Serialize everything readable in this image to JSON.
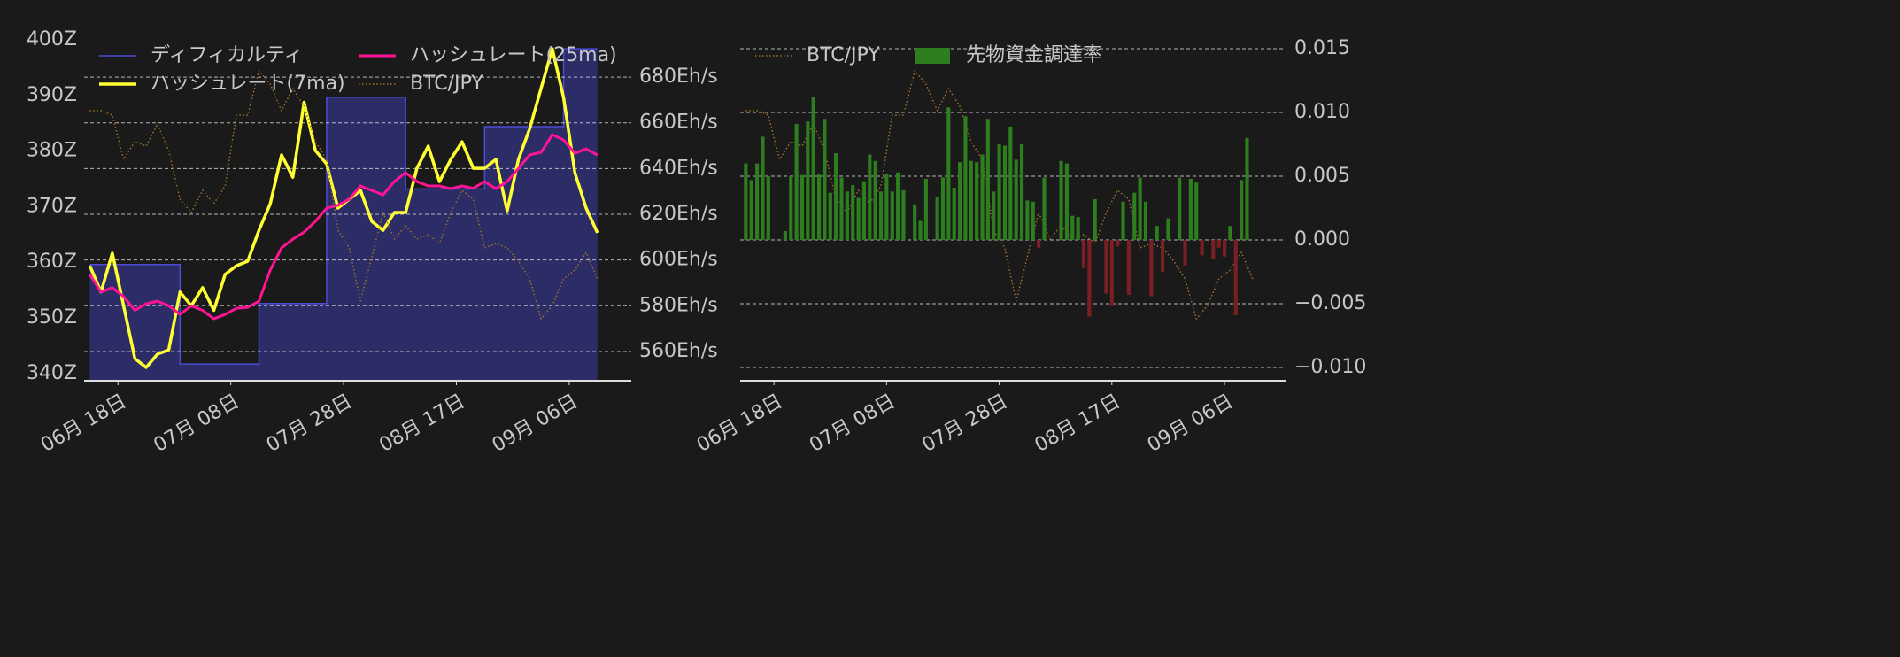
{
  "chart_data": [
    {
      "type": "line",
      "x": [
        "06-13",
        "06-15",
        "06-17",
        "06-19",
        "06-21",
        "06-23",
        "06-25",
        "06-27",
        "06-29",
        "07-01",
        "07-03",
        "07-05",
        "07-07",
        "07-09",
        "07-11",
        "07-13",
        "07-15",
        "07-17",
        "07-19",
        "07-21",
        "07-23",
        "07-25",
        "07-27",
        "07-29",
        "07-31",
        "08-02",
        "08-04",
        "08-06",
        "08-08",
        "08-10",
        "08-12",
        "08-14",
        "08-16",
        "08-18",
        "08-20",
        "08-22",
        "08-24",
        "08-26",
        "08-28",
        "08-30",
        "09-01",
        "09-03",
        "09-05",
        "09-07",
        "09-09",
        "09-11"
      ],
      "xlim": [
        "06-12",
        "09-17"
      ],
      "xticks": [
        {
          "value": "06-18",
          "label": "06月 18日"
        },
        {
          "value": "07-08",
          "label": "07月 08日"
        },
        {
          "value": "07-28",
          "label": "07月 28日"
        },
        {
          "value": "08-17",
          "label": "08月 17日"
        },
        {
          "value": "09-06",
          "label": "09月 06日"
        }
      ],
      "ylim": [
        338.7,
        402.4
      ],
      "yticks": [
        {
          "value": 340,
          "label": "340Z"
        },
        {
          "value": 350,
          "label": "350Z"
        },
        {
          "value": 360,
          "label": "360Z"
        },
        {
          "value": 370,
          "label": "370Z"
        },
        {
          "value": 380,
          "label": "380Z"
        },
        {
          "value": 390,
          "label": "390Z"
        },
        {
          "value": 400,
          "label": "400Z"
        }
      ],
      "y2lim": [
        547.2,
        702.1
      ],
      "y2ticks": [
        {
          "value": 560,
          "label": "560Eh/s"
        },
        {
          "value": 580,
          "label": "580Eh/s"
        },
        {
          "value": 600,
          "label": "600Eh/s"
        },
        {
          "value": 620,
          "label": "620Eh/s"
        },
        {
          "value": 640,
          "label": "640Eh/s"
        },
        {
          "value": 660,
          "label": "660Eh/s"
        },
        {
          "value": 680,
          "label": "680Eh/s"
        }
      ],
      "y3lim": [
        7.0,
        11.0
      ],
      "grid": true,
      "grid_axis": "y2",
      "legend": "upper left",
      "legend_columns": 2,
      "series": [
        {
          "name": "ディフィカルティ",
          "type": "area",
          "step": "post",
          "color": "#4b4bd8",
          "fill": "#2c2c66",
          "values": [
            359.6,
            359.6,
            359.6,
            359.6,
            359.6,
            359.6,
            359.6,
            359.6,
            341.7,
            341.7,
            341.7,
            341.7,
            341.7,
            341.7,
            341.7,
            352.6,
            352.6,
            352.6,
            352.6,
            352.6,
            352.6,
            389.7,
            389.7,
            389.7,
            389.7,
            389.7,
            389.7,
            389.7,
            373.2,
            373.2,
            373.2,
            373.2,
            373.2,
            373.2,
            373.2,
            384.4,
            384.4,
            384.4,
            384.4,
            384.4,
            384.4,
            384.4,
            398.4,
            398.4,
            398.4,
            398.4
          ]
        },
        {
          "name": "ハッシュレート(7ma)",
          "axis": "y2",
          "color": "#ffff33",
          "width": 3.5,
          "values": [
            597.5,
            586,
            603,
            580,
            556.9,
            553,
            558.8,
            560.7,
            586,
            580,
            587.9,
            578,
            593.7,
            597.5,
            599.5,
            613,
            624.6,
            646,
            636.2,
            669,
            647.9,
            642,
            622.7,
            626.6,
            630.4,
            616.9,
            613,
            620.8,
            620.8,
            640.1,
            649.8,
            634.3,
            644,
            651.7,
            640.1,
            640.1,
            644,
            621.5,
            644,
            657.5,
            675,
            692.4,
            671,
            638.2,
            622.7,
            611.9
          ]
        },
        {
          "name": "ハッシュレート(25ma)",
          "axis": "y2",
          "color": "#ff1493",
          "width": 3,
          "values": [
            593.7,
            586,
            587.9,
            584,
            578,
            580.9,
            582,
            580,
            576.2,
            580,
            578,
            574.3,
            576.2,
            578.9,
            579.3,
            582,
            595.6,
            605.3,
            609.1,
            612.2,
            616.9,
            622.7,
            623.9,
            626.6,
            632.4,
            630.4,
            628.5,
            634.3,
            638.2,
            634.3,
            632.4,
            632.4,
            631.2,
            632.4,
            631.4,
            634.3,
            631.2,
            634.3,
            640.1,
            646,
            647.1,
            654.8,
            652.5,
            646.7,
            648.6,
            645.9
          ]
        },
        {
          "name": "BTC/JPY",
          "axis": "y3",
          "color": "#a0702a",
          "width": 1.5,
          "linestyle": "dotted",
          "values": [
            10.05,
            10.05,
            10.0,
            9.5,
            9.7,
            9.65,
            9.9,
            9.6,
            9.05,
            8.9,
            9.15,
            9.0,
            9.2,
            10.0,
            10.0,
            10.5,
            10.35,
            10.05,
            10.3,
            10.1,
            9.7,
            9.5,
            8.7,
            8.5,
            7.9,
            8.4,
            8.9,
            8.6,
            8.75,
            8.6,
            8.65,
            8.55,
            8.9,
            9.15,
            9.05,
            8.5,
            8.55,
            8.5,
            8.35,
            8.15,
            7.7,
            7.85,
            8.15,
            8.25,
            8.45,
            8.15
          ]
        }
      ]
    },
    {
      "type": "bar",
      "x": [
        "06-13",
        "06-14",
        "06-15",
        "06-16",
        "06-17",
        "06-18",
        "06-19",
        "06-20",
        "06-21",
        "06-22",
        "06-23",
        "06-24",
        "06-25",
        "06-26",
        "06-27",
        "06-28",
        "06-29",
        "06-30",
        "07-01",
        "07-02",
        "07-03",
        "07-04",
        "07-05",
        "07-06",
        "07-07",
        "07-08",
        "07-09",
        "07-10",
        "07-11",
        "07-12",
        "07-13",
        "07-14",
        "07-15",
        "07-16",
        "07-17",
        "07-18",
        "07-19",
        "07-20",
        "07-21",
        "07-22",
        "07-23",
        "07-24",
        "07-25",
        "07-26",
        "07-27",
        "07-28",
        "07-29",
        "07-30",
        "07-31",
        "08-01",
        "08-02",
        "08-03",
        "08-04",
        "08-05",
        "08-06",
        "08-07",
        "08-08",
        "08-09",
        "08-10",
        "08-11",
        "08-12",
        "08-13",
        "08-14",
        "08-15",
        "08-16",
        "08-17",
        "08-18",
        "08-19",
        "08-20",
        "08-21",
        "08-22",
        "08-23",
        "08-24",
        "08-25",
        "08-26",
        "08-27",
        "08-28",
        "08-29",
        "08-30",
        "08-31",
        "09-01",
        "09-02",
        "09-03",
        "09-04",
        "09-05",
        "09-06",
        "09-07",
        "09-08",
        "09-09",
        "09-10"
      ],
      "xlim": [
        "06-12",
        "09-17"
      ],
      "xticks": [
        {
          "value": "06-18",
          "label": "06月 18日"
        },
        {
          "value": "07-08",
          "label": "07月 08日"
        },
        {
          "value": "07-28",
          "label": "07月 28日"
        },
        {
          "value": "08-17",
          "label": "08月 17日"
        },
        {
          "value": "09-06",
          "label": "09月 06日"
        }
      ],
      "ylim": [
        -0.01104,
        0.01674
      ],
      "yticks": [
        {
          "value": -0.01,
          "label": "−0.010"
        },
        {
          "value": -0.005,
          "label": "−0.005"
        },
        {
          "value": 0,
          "label": "0.000"
        },
        {
          "value": 0.005,
          "label": "0.005"
        },
        {
          "value": 0.01,
          "label": "0.010"
        },
        {
          "value": 0.015,
          "label": "0.015"
        }
      ],
      "yaxis_side": "right",
      "y2lim": [
        7.0,
        11.0
      ],
      "grid": true,
      "grid_axis": "y",
      "legend": "upper left",
      "legend_columns": 2,
      "series": [
        {
          "name": "BTC/JPY",
          "type": "line",
          "axis": "y2",
          "color": "#a0702a",
          "width": 1.5,
          "linestyle": "dotted",
          "x": [
            "06-13",
            "06-15",
            "06-17",
            "06-19",
            "06-21",
            "06-23",
            "06-25",
            "06-27",
            "06-29",
            "07-01",
            "07-03",
            "07-05",
            "07-07",
            "07-09",
            "07-11",
            "07-13",
            "07-15",
            "07-17",
            "07-19",
            "07-21",
            "07-23",
            "07-25",
            "07-27",
            "07-29",
            "07-31",
            "08-02",
            "08-04",
            "08-06",
            "08-08",
            "08-10",
            "08-12",
            "08-14",
            "08-16",
            "08-18",
            "08-20",
            "08-22",
            "08-24",
            "08-26",
            "08-28",
            "08-30",
            "09-01",
            "09-03",
            "09-05",
            "09-07",
            "09-09",
            "09-11"
          ],
          "values": [
            10.05,
            10.05,
            10.0,
            9.5,
            9.7,
            9.65,
            9.9,
            9.6,
            9.05,
            8.9,
            9.15,
            9.0,
            9.2,
            10.0,
            10.0,
            10.5,
            10.35,
            10.05,
            10.3,
            10.1,
            9.7,
            9.5,
            8.7,
            8.5,
            7.9,
            8.4,
            8.9,
            8.6,
            8.75,
            8.6,
            8.65,
            8.55,
            8.9,
            9.15,
            9.05,
            8.5,
            8.55,
            8.5,
            8.35,
            8.15,
            7.7,
            7.85,
            8.15,
            8.25,
            8.45,
            8.15
          ]
        },
        {
          "name": "先物資金調達率",
          "color": "#2e7d1e",
          "negative_color": "#7a1f24",
          "values": [
            0.006,
            0.0047,
            0.006,
            0.0081,
            0.005,
            0.0,
            0.0,
            0.0007,
            0.005,
            0.0091,
            0.0051,
            0.0093,
            0.0112,
            0.0052,
            0.0095,
            0.0037,
            0.0068,
            0.0049,
            0.0038,
            0.0043,
            0.0033,
            0.0046,
            0.0067,
            0.0062,
            0.0038,
            0.0052,
            0.0038,
            0.0053,
            0.0039,
            0.0,
            0.0028,
            0.0015,
            0.0048,
            0.0,
            0.0034,
            0.0049,
            0.0104,
            0.0041,
            0.0061,
            0.0097,
            0.0062,
            0.0061,
            0.0067,
            0.0095,
            0.0038,
            0.0075,
            0.0074,
            0.0089,
            0.0063,
            0.0075,
            0.0031,
            0.003,
            -0.0006,
            0.0049,
            0.0,
            0.0,
            0.0062,
            0.006,
            0.0019,
            0.0018,
            -0.0022,
            -0.006,
            0.0032,
            0.0,
            -0.0042,
            -0.0052,
            -0.0005,
            0.003,
            -0.0043,
            0.0037,
            0.0049,
            0.003,
            -0.0044,
            0.0011,
            -0.0025,
            0.0017,
            0.0,
            0.0049,
            -0.002,
            0.0048,
            0.0045,
            -0.0012,
            0.0,
            -0.0015,
            -0.0006,
            -0.0013,
            0.0011,
            -0.0059,
            0.0047,
            0.008
          ]
        }
      ]
    }
  ]
}
